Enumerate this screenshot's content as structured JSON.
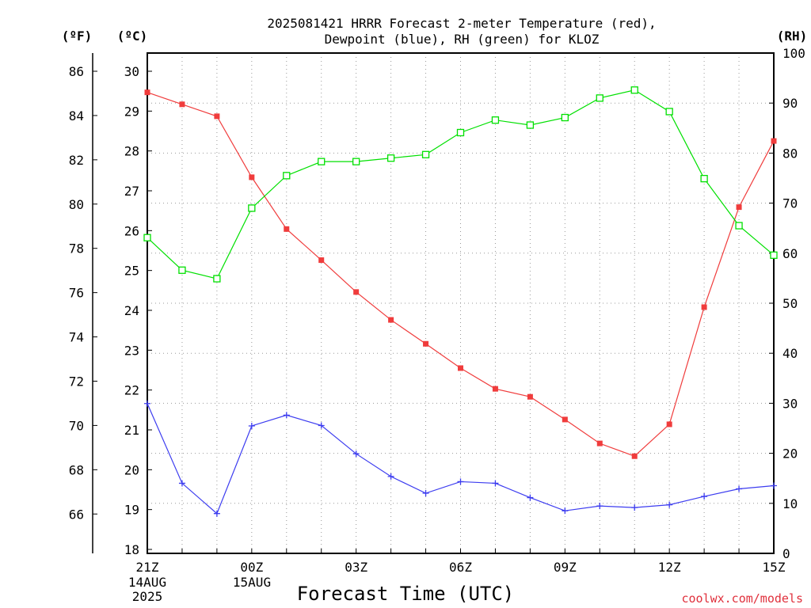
{
  "title_line1": "2025081421 HRRR Forecast 2-meter Temperature (red),",
  "title_line2": "Dewpoint (blue), RH (green) for KLOZ",
  "unit_f": "(ºF)",
  "unit_c": "(ºC)",
  "unit_rh": "(RH)",
  "xlabel": "Forecast Time (UTC)",
  "credit": "coolwx.com/models",
  "date_label_1": [
    "14AUG",
    "2025"
  ],
  "date_label_2": [
    "15AUG"
  ],
  "colors": {
    "temperature": "#f03c3c",
    "dewpoint": "#3c3cf0",
    "rh": "#00e000",
    "grid": "#999999"
  },
  "chart_data": {
    "type": "line",
    "x_tick_labels": [
      "21Z",
      "00Z",
      "03Z",
      "06Z",
      "09Z",
      "12Z",
      "15Z"
    ],
    "x": [
      "21Z",
      "22Z",
      "23Z",
      "00Z",
      "01Z",
      "02Z",
      "03Z",
      "04Z",
      "05Z",
      "06Z",
      "07Z",
      "08Z",
      "09Z",
      "10Z",
      "11Z",
      "12Z",
      "13Z",
      "14Z",
      "15Z"
    ],
    "y_left_celsius": {
      "range": [
        18,
        30
      ],
      "ticks": [
        18,
        19,
        20,
        21,
        22,
        23,
        24,
        25,
        26,
        27,
        28,
        29,
        30
      ]
    },
    "y_left_fahrenheit": {
      "ticks": [
        66,
        68,
        70,
        72,
        74,
        76,
        78,
        80,
        82,
        84,
        86
      ]
    },
    "y_right_rh": {
      "range": [
        0,
        100
      ],
      "ticks": [
        0,
        10,
        20,
        30,
        40,
        50,
        60,
        70,
        80,
        90,
        100
      ]
    },
    "grid": true,
    "series": [
      {
        "name": "Temperature (red)",
        "axis": "celsius",
        "marker": "filled-square",
        "values": [
          29.47,
          29.17,
          28.87,
          27.34,
          26.04,
          25.26,
          24.46,
          23.76,
          23.16,
          22.55,
          22.03,
          21.83,
          21.26,
          20.66,
          20.34,
          21.14,
          24.08,
          26.59,
          28.25
        ]
      },
      {
        "name": "Dewpoint (blue)",
        "axis": "celsius",
        "marker": "plus",
        "values": [
          21.66,
          19.66,
          18.9,
          21.1,
          21.37,
          21.11,
          20.4,
          19.83,
          19.41,
          19.7,
          19.66,
          19.3,
          18.97,
          19.09,
          19.05,
          19.12,
          19.33,
          19.52,
          19.6
        ]
      },
      {
        "name": "RH (green)",
        "axis": "rh",
        "marker": "open-square",
        "values": [
          63.1,
          56.6,
          54.9,
          69.0,
          75.5,
          78.3,
          78.3,
          79.0,
          79.7,
          84.1,
          86.6,
          85.6,
          87.1,
          91.0,
          92.6,
          88.3,
          74.9,
          65.5,
          59.6
        ]
      }
    ]
  }
}
